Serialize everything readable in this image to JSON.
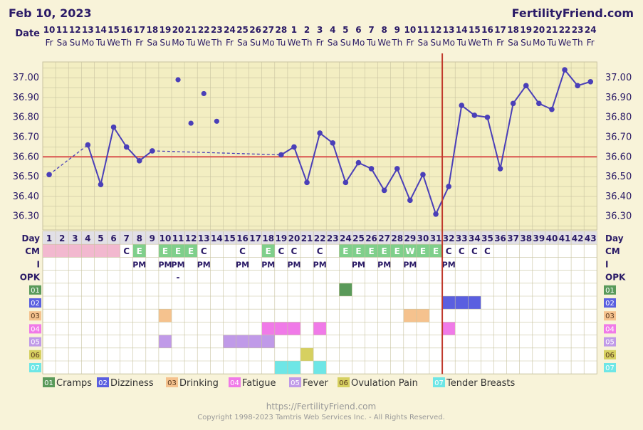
{
  "header": {
    "date": "Feb 10, 2023",
    "brand": "FertilityFriend.com"
  },
  "row_labels": {
    "date": "Date",
    "day": "Day",
    "cm": "CM",
    "intercourse": "I",
    "opk": "OPK"
  },
  "dates": [
    "10",
    "11",
    "12",
    "13",
    "14",
    "15",
    "16",
    "17",
    "18",
    "19",
    "20",
    "21",
    "22",
    "23",
    "24",
    "25",
    "26",
    "27",
    "28",
    "1",
    "2",
    "3",
    "4",
    "5",
    "6",
    "7",
    "8",
    "9",
    "10",
    "11",
    "12",
    "13",
    "14",
    "15",
    "16",
    "17",
    "18",
    "19",
    "20",
    "21",
    "22",
    "23",
    "24"
  ],
  "weekdays": [
    "Fr",
    "Sa",
    "Su",
    "Mo",
    "Tu",
    "We",
    "Th",
    "Fr",
    "Sa",
    "Su",
    "Mo",
    "Tu",
    "We",
    "Th",
    "Fr",
    "Sa",
    "Su",
    "Mo",
    "Tu",
    "We",
    "Th",
    "Fr",
    "Sa",
    "Su",
    "Mo",
    "Tu",
    "We",
    "Th",
    "Fr",
    "Sa",
    "Su",
    "Mo",
    "Tu",
    "We",
    "Th",
    "Fr",
    "Sa",
    "Su",
    "Mo",
    "Tu",
    "We",
    "Th",
    "Fr"
  ],
  "days": [
    "1",
    "2",
    "3",
    "4",
    "5",
    "6",
    "7",
    "8",
    "9",
    "10",
    "11",
    "12",
    "13",
    "14",
    "15",
    "16",
    "17",
    "18",
    "19",
    "20",
    "21",
    "22",
    "23",
    "24",
    "25",
    "26",
    "27",
    "28",
    "29",
    "30",
    "31",
    "32",
    "33",
    "34",
    "35",
    "36",
    "37",
    "38",
    "39",
    "40",
    "41",
    "42",
    "43"
  ],
  "cm": [
    "",
    "",
    "",
    "",
    "",
    "",
    "C",
    "E",
    "",
    "E",
    "E",
    "E",
    "C",
    "",
    "",
    "C",
    "",
    "E",
    "C",
    "C",
    "",
    "C",
    "",
    "E",
    "E",
    "E",
    "E",
    "E",
    "W",
    "E",
    "E",
    "C",
    "C",
    "C",
    "C",
    "",
    "",
    "",
    "",
    "",
    "",
    "",
    ""
  ],
  "intercourse": [
    "",
    "",
    "",
    "",
    "",
    "",
    "",
    "PM",
    "",
    "PM",
    "PM",
    "",
    "PM",
    "",
    "",
    "PM",
    "",
    "PM",
    "",
    "PM",
    "",
    "PM",
    "",
    "",
    "PM",
    "",
    "PM",
    "",
    "PM",
    "",
    "",
    "PM",
    "",
    "",
    "",
    "",
    "",
    "",
    "",
    "",
    "",
    "",
    ""
  ],
  "opk": [
    "",
    "",
    "",
    "",
    "",
    "",
    "",
    "",
    "",
    "",
    "-",
    "",
    "",
    "",
    "",
    "",
    "",
    "",
    "",
    "",
    "",
    "",
    "",
    "",
    "",
    "",
    "",
    "",
    "",
    "",
    "",
    "",
    "",
    "",
    "",
    "",
    "",
    "",
    "",
    "",
    "",
    "",
    ""
  ],
  "colors": {
    "chart_bg": "#f3eec2",
    "grid": "#c8c3a0",
    "line": "#4a3fb8",
    "coverline": "#d9534f",
    "ovulation_line": "#c0392b",
    "menses": "#f2b8cf",
    "cm_fill": "#7fcf8b",
    "label_purple": "#2a1a66"
  },
  "symptoms": [
    {
      "code": "01",
      "name": "Cramps",
      "color": "#5a9a5a",
      "days": [
        24
      ]
    },
    {
      "code": "02",
      "name": "Dizziness",
      "color": "#5a5fe0",
      "days": [
        32,
        33,
        34
      ]
    },
    {
      "code": "03",
      "name": "Drinking",
      "color": "#f5c28e",
      "days": [
        10,
        29,
        30
      ]
    },
    {
      "code": "04",
      "name": "Fatigue",
      "color": "#f07ae8",
      "days": [
        18,
        19,
        20,
        22,
        32
      ]
    },
    {
      "code": "05",
      "name": "Fever",
      "color": "#c09ae8",
      "days": [
        10,
        15,
        16,
        17,
        18
      ]
    },
    {
      "code": "06",
      "name": "Ovulation Pain",
      "color": "#d6d060",
      "days": [
        21
      ]
    },
    {
      "code": "07",
      "name": "Tender Breasts",
      "color": "#6ee6e6",
      "days": [
        19,
        20,
        22
      ]
    }
  ],
  "footer": {
    "url": "https://FertilityFriend.com",
    "copyright": "Copyright 1998-2023 Tamtris Web Services Inc. - All Rights Reserved."
  },
  "chart_data": {
    "type": "line",
    "xlabel": "Day",
    "ylabel": "",
    "ylim": [
      36.23,
      37.08
    ],
    "y_ticks": [
      "37.00",
      "36.90",
      "36.80",
      "36.70",
      "36.60",
      "36.50",
      "36.40",
      "36.30"
    ],
    "coverline": 36.6,
    "ovulation_day": 32,
    "grid": true,
    "series": [
      {
        "points": [
          {
            "day": 1,
            "temp": 36.51
          },
          {
            "day": 4,
            "temp": 36.66
          },
          {
            "day": 5,
            "temp": 36.46
          },
          {
            "day": 6,
            "temp": 36.75
          },
          {
            "day": 7,
            "temp": 36.65
          },
          {
            "day": 8,
            "temp": 36.58
          },
          {
            "day": 9,
            "temp": 36.63
          },
          {
            "day": 19,
            "temp": 36.61
          },
          {
            "day": 20,
            "temp": 36.65
          },
          {
            "day": 21,
            "temp": 36.47
          },
          {
            "day": 22,
            "temp": 36.72
          },
          {
            "day": 23,
            "temp": 36.67
          },
          {
            "day": 24,
            "temp": 36.47
          },
          {
            "day": 25,
            "temp": 36.57
          },
          {
            "day": 26,
            "temp": 36.54
          },
          {
            "day": 27,
            "temp": 36.43
          },
          {
            "day": 28,
            "temp": 36.54
          },
          {
            "day": 29,
            "temp": 36.38
          },
          {
            "day": 30,
            "temp": 36.51
          },
          {
            "day": 31,
            "temp": 36.31
          },
          {
            "day": 32,
            "temp": 36.45
          },
          {
            "day": 33,
            "temp": 36.86
          },
          {
            "day": 34,
            "temp": 36.81
          },
          {
            "day": 35,
            "temp": 36.8
          },
          {
            "day": 36,
            "temp": 36.54
          },
          {
            "day": 37,
            "temp": 36.87
          },
          {
            "day": 38,
            "temp": 36.96
          },
          {
            "day": 39,
            "temp": 36.87
          },
          {
            "day": 40,
            "temp": 36.84
          },
          {
            "day": 41,
            "temp": 37.04
          },
          {
            "day": 42,
            "temp": 36.96
          },
          {
            "day": 43,
            "temp": 36.98
          }
        ],
        "dashed_segments": [
          [
            1,
            4
          ],
          [
            9,
            19
          ]
        ],
        "discarded_points": [
          {
            "day": 11,
            "temp": 36.99
          },
          {
            "day": 12,
            "temp": 36.77
          },
          {
            "day": 13,
            "temp": 36.92
          },
          {
            "day": 14,
            "temp": 36.78
          }
        ]
      }
    ]
  }
}
